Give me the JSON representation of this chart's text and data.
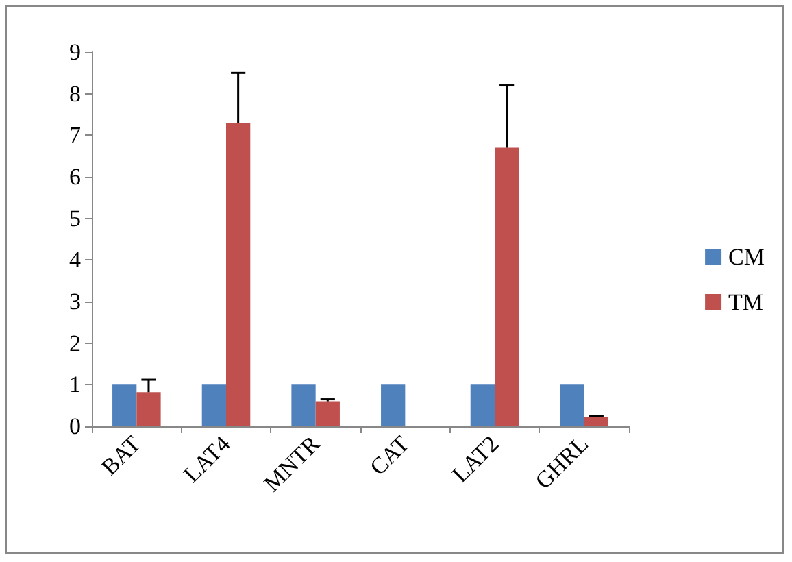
{
  "chart_data": {
    "type": "bar",
    "categories": [
      "BAT",
      "LAT4",
      "MNTR",
      "CAT",
      "LAT2",
      "GHRL"
    ],
    "series": [
      {
        "name": "CM",
        "color": "#4f81bd",
        "values": [
          1,
          1,
          1,
          1,
          1,
          1
        ]
      },
      {
        "name": "TM",
        "color": "#c0504d",
        "values": [
          0.82,
          7.3,
          0.6,
          null,
          6.7,
          0.22
        ],
        "errors": [
          [
            0.82,
            1.12
          ],
          [
            7.3,
            8.5
          ],
          [
            0.6,
            0.65
          ],
          null,
          [
            6.7,
            8.2
          ],
          [
            0.22,
            0.25
          ]
        ]
      }
    ],
    "ylim": [
      0,
      9
    ],
    "yticks": [
      0,
      1,
      2,
      3,
      4,
      5,
      6,
      7,
      8,
      9
    ],
    "grid": false,
    "legend": "right"
  }
}
